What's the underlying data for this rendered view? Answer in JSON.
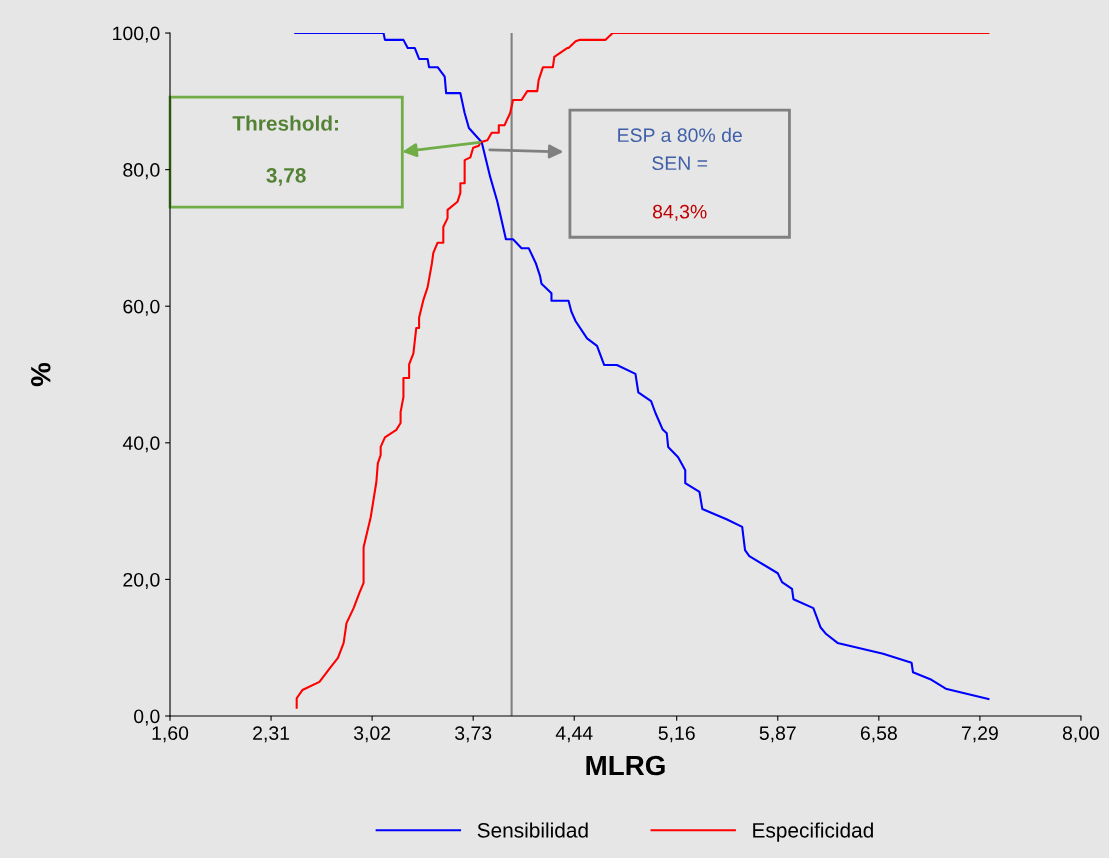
{
  "chart_data": {
    "type": "line",
    "xlabel": "MLRG",
    "ylabel": "%",
    "xlim": [
      1.6,
      8.0
    ],
    "ylim": [
      0,
      100
    ],
    "xticks": [
      {
        "value": 1.6,
        "label": "1,60"
      },
      {
        "value": 2.31,
        "label": "2,31"
      },
      {
        "value": 3.02,
        "label": "3,02"
      },
      {
        "value": 3.73,
        "label": "3,73"
      },
      {
        "value": 4.44,
        "label": "4,44"
      },
      {
        "value": 5.16,
        "label": "5,16"
      },
      {
        "value": 5.87,
        "label": "5,87"
      },
      {
        "value": 6.58,
        "label": "6,58"
      },
      {
        "value": 7.29,
        "label": "7,29"
      },
      {
        "value": 8.0,
        "label": "8,00"
      }
    ],
    "yticks": [
      {
        "value": 0,
        "label": "0,0"
      },
      {
        "value": 20,
        "label": "20,0"
      },
      {
        "value": 40,
        "label": "40,0"
      },
      {
        "value": 60,
        "label": "60,0"
      },
      {
        "value": 80,
        "label": "80,0"
      },
      {
        "value": 100,
        "label": "100,0"
      }
    ],
    "grid": false,
    "legend": "bottom",
    "marker": "none",
    "line_style": "solid",
    "series": [
      {
        "name": "Sensibilidad",
        "color": "#0000ff",
        "x": [
          2.48,
          3.1,
          3.11,
          3.24,
          3.27,
          3.32,
          3.35,
          3.41,
          3.42,
          3.48,
          3.53,
          3.54,
          3.64,
          3.67,
          3.7,
          3.79,
          3.85,
          3.9,
          3.96,
          4.01,
          4.07,
          4.12,
          4.17,
          4.2,
          4.21,
          4.28,
          4.28,
          4.4,
          4.42,
          4.45,
          4.53,
          4.6,
          4.65,
          4.74,
          4.87,
          4.89,
          4.98,
          5.01,
          5.06,
          5.09,
          5.1,
          5.17,
          5.22,
          5.22,
          5.32,
          5.34,
          5.51,
          5.62,
          5.64,
          5.67,
          5.87,
          5.9,
          5.97,
          5.98,
          6.12,
          6.17,
          6.21,
          6.29,
          6.61,
          6.81,
          6.82,
          6.95,
          7.05,
          7.35
        ],
        "values": [
          100,
          100,
          99.0,
          99.0,
          97.8,
          97.8,
          96.2,
          96.2,
          95.0,
          95.0,
          93.6,
          91.2,
          91.2,
          88.3,
          86.1,
          84.0,
          78.9,
          75.3,
          69.8,
          69.8,
          68.5,
          68.5,
          66.3,
          64.4,
          63.3,
          61.9,
          60.8,
          60.8,
          59.2,
          57.8,
          55.3,
          54.2,
          51.4,
          51.4,
          50.1,
          47.4,
          46.1,
          44.4,
          42.0,
          41.4,
          39.4,
          37.9,
          36.0,
          34.1,
          32.8,
          30.3,
          28.8,
          27.7,
          24.3,
          23.4,
          20.9,
          19.6,
          18.6,
          17.1,
          15.8,
          13.0,
          12.0,
          10.7,
          9.1,
          7.8,
          6.4,
          5.3,
          4.0,
          2.5
        ]
      },
      {
        "name": "Especificidad",
        "color": "#ff0000",
        "x": [
          2.49,
          2.49,
          2.53,
          2.65,
          2.73,
          2.78,
          2.82,
          2.84,
          2.89,
          2.93,
          2.96,
          2.96,
          3.01,
          3.05,
          3.06,
          3.08,
          3.08,
          3.11,
          3.19,
          3.22,
          3.22,
          3.24,
          3.24,
          3.28,
          3.28,
          3.31,
          3.33,
          3.35,
          3.35,
          3.38,
          3.41,
          3.44,
          3.45,
          3.48,
          3.52,
          3.52,
          3.55,
          3.55,
          3.62,
          3.64,
          3.64,
          3.67,
          3.67,
          3.71,
          3.73,
          3.77,
          3.78,
          3.83,
          3.86,
          3.91,
          3.91,
          3.95,
          3.99,
          4.01,
          4.07,
          4.11,
          4.18,
          4.19,
          4.22,
          4.29,
          4.3,
          4.39,
          4.4,
          4.45,
          4.48,
          4.66,
          4.71,
          7.35
        ],
        "values": [
          1.2,
          2.6,
          3.8,
          5.0,
          7.2,
          8.5,
          10.7,
          13.6,
          15.8,
          18.0,
          19.5,
          24.7,
          29.1,
          34.3,
          37.0,
          38.2,
          39.4,
          40.8,
          41.9,
          42.9,
          44.5,
          46.7,
          49.5,
          49.5,
          51.5,
          53.1,
          56.8,
          56.8,
          58.3,
          60.9,
          62.8,
          66.3,
          67.8,
          69.3,
          69.3,
          71.6,
          72.9,
          74.1,
          75.3,
          76.6,
          78.0,
          78.0,
          81.4,
          81.8,
          83.2,
          83.5,
          84.0,
          84.3,
          85.4,
          85.4,
          86.5,
          86.5,
          88.3,
          90.2,
          90.2,
          91.5,
          91.5,
          93.1,
          95.0,
          95.0,
          96.5,
          97.8,
          97.8,
          98.8,
          99.0,
          99.0,
          100,
          100
        ]
      }
    ],
    "ref_lines": [
      {
        "axis": "x",
        "value": 4.0,
        "color": "#808080",
        "line_style": "solid"
      }
    ],
    "annotations": [
      "Threshold:\n3,78",
      "ESP a 80% de\nSEN =\n84,3%"
    ]
  }
}
